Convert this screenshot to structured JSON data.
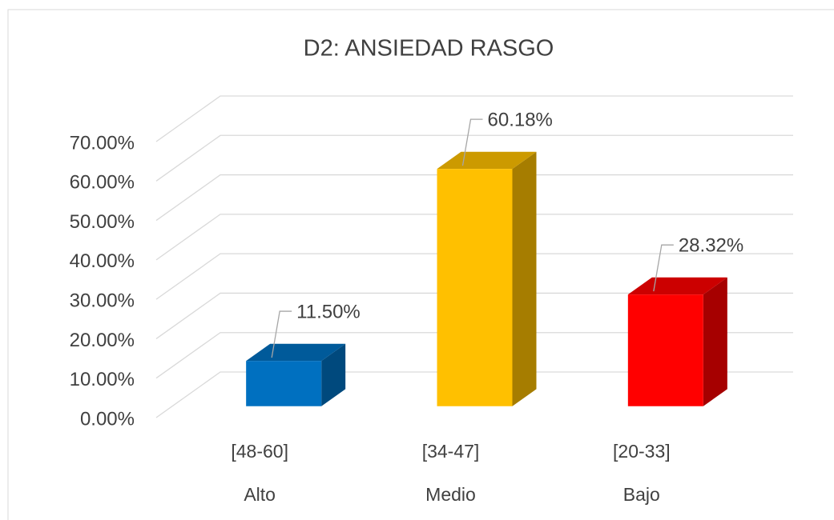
{
  "chart_data": {
    "type": "bar3d",
    "title": "D2: ANSIEDAD RASGO",
    "categories": [
      [
        "[48-60]",
        "Alto"
      ],
      [
        "[34-47]",
        "Medio"
      ],
      [
        "[20-33]",
        "Bajo"
      ]
    ],
    "values": [
      11.5,
      60.18,
      28.32
    ],
    "value_labels": [
      "11.50%",
      "60.18%",
      "28.32%"
    ],
    "colors": [
      "#0070c0",
      "#ffc000",
      "#ff0000"
    ],
    "ylim": [
      0,
      70
    ],
    "yticks": [
      {
        "value": 0,
        "label": "0.00%"
      },
      {
        "value": 10,
        "label": "10.00%"
      },
      {
        "value": 20,
        "label": "20.00%"
      },
      {
        "value": 30,
        "label": "30.00%"
      },
      {
        "value": 40,
        "label": "40.00%"
      },
      {
        "value": 50,
        "label": "50.00%"
      },
      {
        "value": 60,
        "label": "60.00%"
      },
      {
        "value": 70,
        "label": "70.00%"
      }
    ],
    "grid": true
  }
}
